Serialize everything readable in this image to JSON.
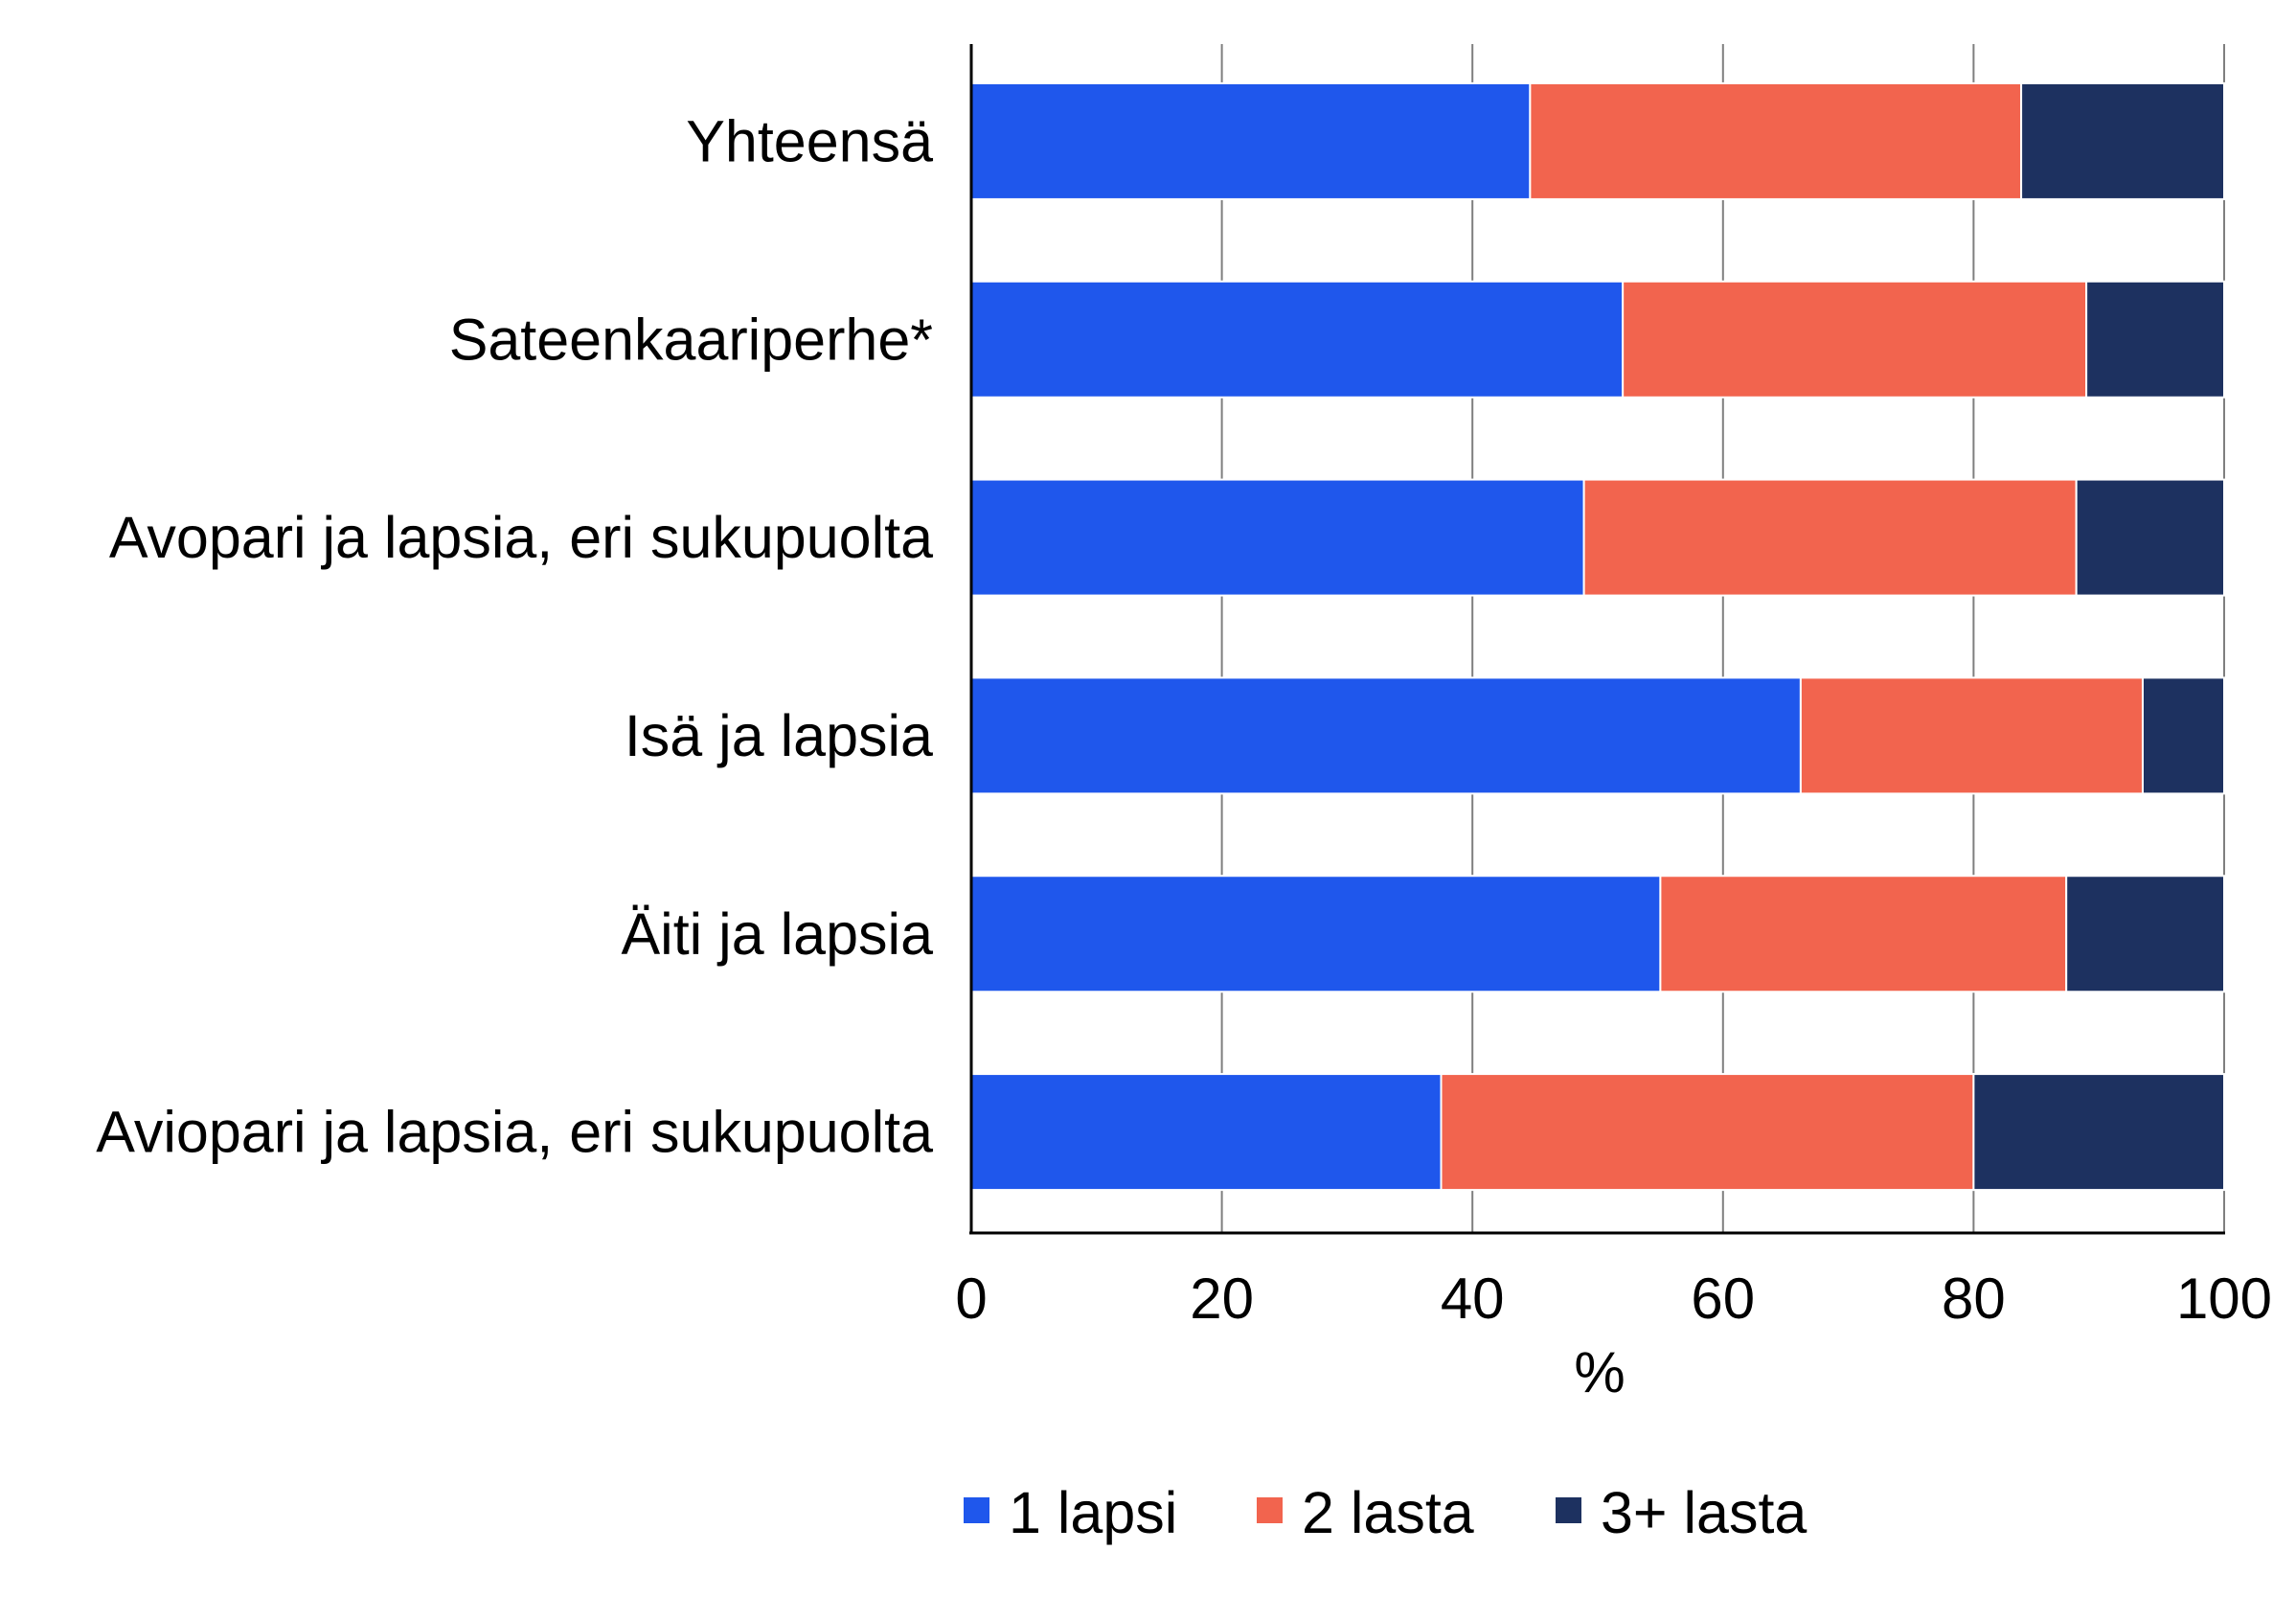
{
  "chart_data": {
    "type": "bar",
    "orientation": "horizontal",
    "stacked": true,
    "categories": [
      "Yhteensä",
      "Sateenkaariperhe*",
      "Avopari ja lapsia, eri sukupuolta",
      "Isä ja lapsia",
      "Äiti ja lapsia",
      "Aviopari ja lapsia, eri sukupuolta"
    ],
    "series": [
      {
        "name": "1 lapsi",
        "color": "#1f57ec",
        "values": [
          44.6,
          52.0,
          48.9,
          66.2,
          55.0,
          37.5
        ]
      },
      {
        "name": "2 lasta",
        "color": "#f2644e",
        "values": [
          39.2,
          37.0,
          39.3,
          27.3,
          32.4,
          42.5
        ]
      },
      {
        "name": "3+ lasta",
        "color": "#1d3160",
        "values": [
          16.2,
          11.0,
          11.8,
          6.5,
          12.6,
          20.0
        ]
      }
    ],
    "xlabel": "%",
    "ylabel": "",
    "xlim": [
      0,
      100
    ],
    "xticks": [
      "0",
      "20",
      "40",
      "60",
      "80",
      "100"
    ],
    "grid": true,
    "legend": "bottom"
  }
}
